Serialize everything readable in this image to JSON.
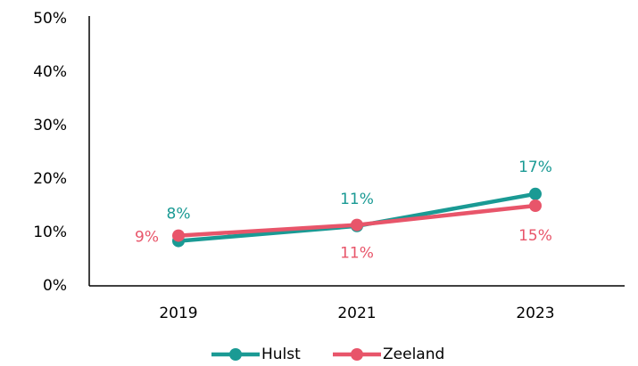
{
  "chart_data": {
    "type": "line",
    "categories": [
      "2019",
      "2021",
      "2023"
    ],
    "series": [
      {
        "name": "Hulst",
        "color": "#1a9a94",
        "values": [
          8.4,
          11.2,
          17.2
        ],
        "value_labels": [
          "8%",
          "11%",
          "17%"
        ]
      },
      {
        "name": "Zeeland",
        "color": "#e8556a",
        "values": [
          9.4,
          11.4,
          15.0
        ],
        "value_labels": [
          "9%",
          "11%",
          "15%"
        ]
      }
    ],
    "ylim": [
      0,
      50
    ],
    "yticks": [
      {
        "value": 0,
        "label": "0%"
      },
      {
        "value": 10,
        "label": "10%"
      },
      {
        "value": 20,
        "label": "20%"
      },
      {
        "value": 30,
        "label": "30%"
      },
      {
        "value": 40,
        "label": "40%"
      },
      {
        "value": 50,
        "label": "50%"
      }
    ],
    "grid": false,
    "legend": "bottom"
  }
}
